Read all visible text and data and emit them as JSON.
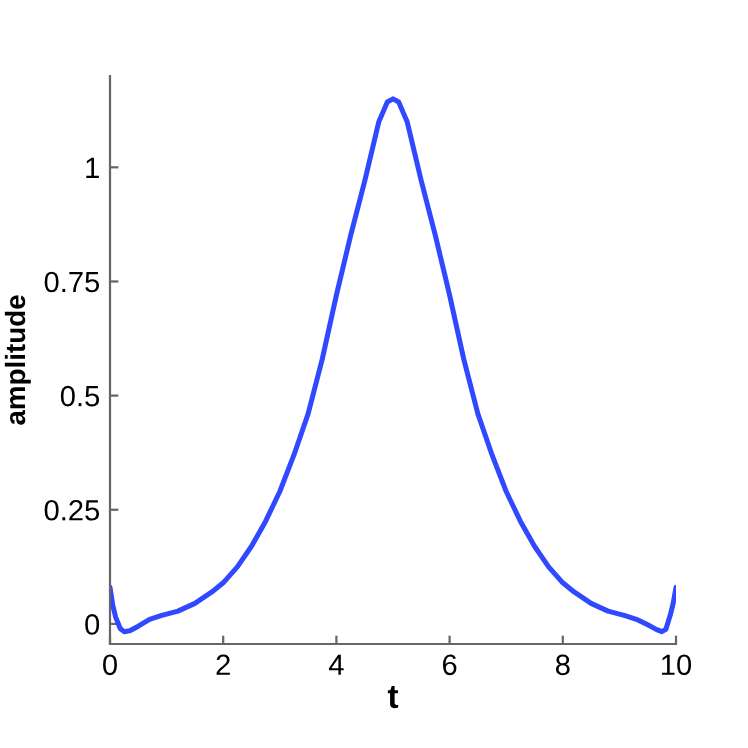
{
  "chart_data": {
    "type": "line",
    "xlabel": "t",
    "ylabel": "amplitude",
    "series": [
      {
        "color": "#3048ff",
        "x": [
          0,
          0.05,
          0.1,
          0.18,
          0.25,
          0.35,
          0.5,
          0.7,
          0.9,
          1.2,
          1.5,
          1.8,
          2.0,
          2.25,
          2.5,
          2.75,
          3.0,
          3.25,
          3.5,
          3.75,
          4.0,
          4.25,
          4.5,
          4.75,
          4.9,
          5.0,
          5.1,
          5.25,
          5.5,
          5.75,
          6.0,
          6.25,
          6.5,
          6.75,
          7.0,
          7.25,
          7.5,
          7.75,
          8.0,
          8.2,
          8.5,
          8.8,
          9.1,
          9.3,
          9.5,
          9.65,
          9.75,
          9.82,
          9.9,
          9.95,
          10
        ],
        "values": [
          0.08,
          0.04,
          0.015,
          -0.01,
          -0.017,
          -0.015,
          -0.005,
          0.01,
          0.018,
          0.028,
          0.045,
          0.07,
          0.09,
          0.125,
          0.17,
          0.225,
          0.29,
          0.37,
          0.46,
          0.58,
          0.72,
          0.85,
          0.97,
          1.1,
          1.143,
          1.15,
          1.143,
          1.1,
          0.97,
          0.85,
          0.72,
          0.58,
          0.46,
          0.37,
          0.29,
          0.225,
          0.17,
          0.125,
          0.09,
          0.07,
          0.045,
          0.028,
          0.018,
          0.01,
          -0.002,
          -0.012,
          -0.017,
          -0.012,
          0.02,
          0.045,
          0.08
        ]
      }
    ],
    "xlim": [
      0,
      10
    ],
    "ylim": [
      -0.044,
      1.2
    ],
    "xticks": [
      0,
      2,
      4,
      6,
      8,
      10
    ],
    "yticks": [
      0,
      0.25,
      0.5,
      0.75,
      1
    ],
    "grid": false
  }
}
